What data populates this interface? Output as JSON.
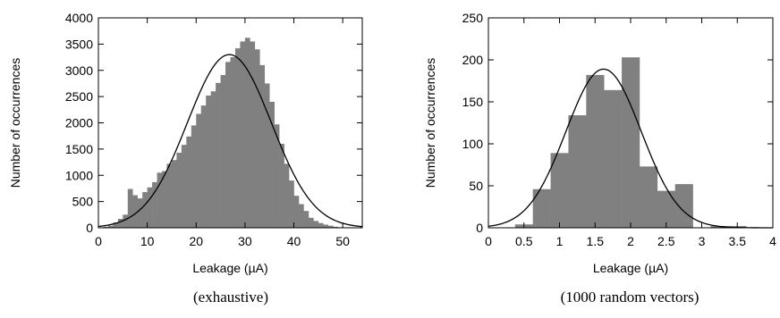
{
  "chart_data": [
    {
      "type": "bar",
      "caption": "(exhaustive)",
      "xlabel": "Leakage (µA)",
      "ylabel": "Number of occurrences",
      "xlim": [
        0,
        54
      ],
      "ylim": [
        0,
        4000
      ],
      "xticks": [
        0,
        10,
        20,
        30,
        40,
        50
      ],
      "yticks": [
        0,
        500,
        1000,
        1500,
        2000,
        2500,
        3000,
        3500,
        4000
      ],
      "bar_color": "#808080",
      "curve_color": "#000000",
      "bin_edges": [
        1,
        2,
        3,
        4,
        5,
        6,
        7,
        8,
        9,
        10,
        11,
        12,
        13,
        14,
        15,
        16,
        17,
        18,
        19,
        20,
        21,
        22,
        23,
        24,
        25,
        26,
        27,
        28,
        29,
        30,
        31,
        32,
        33,
        34,
        35,
        36,
        37,
        38,
        39,
        40,
        41,
        42,
        43,
        44,
        45,
        46,
        47,
        48,
        49,
        50,
        51
      ],
      "values": [
        20,
        40,
        100,
        170,
        250,
        740,
        620,
        560,
        680,
        770,
        870,
        1050,
        1080,
        1220,
        1290,
        1430,
        1580,
        1740,
        1950,
        2170,
        2330,
        2520,
        2600,
        2760,
        2910,
        3160,
        3250,
        3420,
        3550,
        3620,
        3550,
        3400,
        3100,
        2750,
        2400,
        1970,
        1600,
        1220,
        900,
        610,
        450,
        320,
        190,
        130,
        90,
        60,
        40,
        20,
        10,
        5
      ],
      "fit_curve": {
        "type": "normal",
        "mean": 26.8,
        "sd": 8.6,
        "peak": 3300
      }
    },
    {
      "type": "bar",
      "caption": "(1000 random vectors)",
      "xlabel": "Leakage (µA)",
      "ylabel": "Number of occurrences",
      "xlim": [
        0,
        4
      ],
      "ylim": [
        0,
        250
      ],
      "xticks": [
        0,
        0.5,
        1,
        1.5,
        2,
        2.5,
        3,
        3.5,
        4
      ],
      "yticks": [
        0,
        50,
        100,
        150,
        200,
        250
      ],
      "bar_color": "#808080",
      "curve_color": "#000000",
      "bin_edges": [
        0.375,
        0.625,
        0.875,
        1.125,
        1.375,
        1.625,
        1.875,
        2.125,
        2.375,
        2.625,
        2.875,
        3.125,
        3.375,
        3.625
      ],
      "values": [
        4,
        46,
        89,
        134,
        182,
        164,
        203,
        73,
        44,
        52,
        0,
        2,
        2
      ],
      "fit_curve": {
        "type": "normal",
        "mean": 1.62,
        "sd": 0.53,
        "peak": 189
      }
    }
  ]
}
